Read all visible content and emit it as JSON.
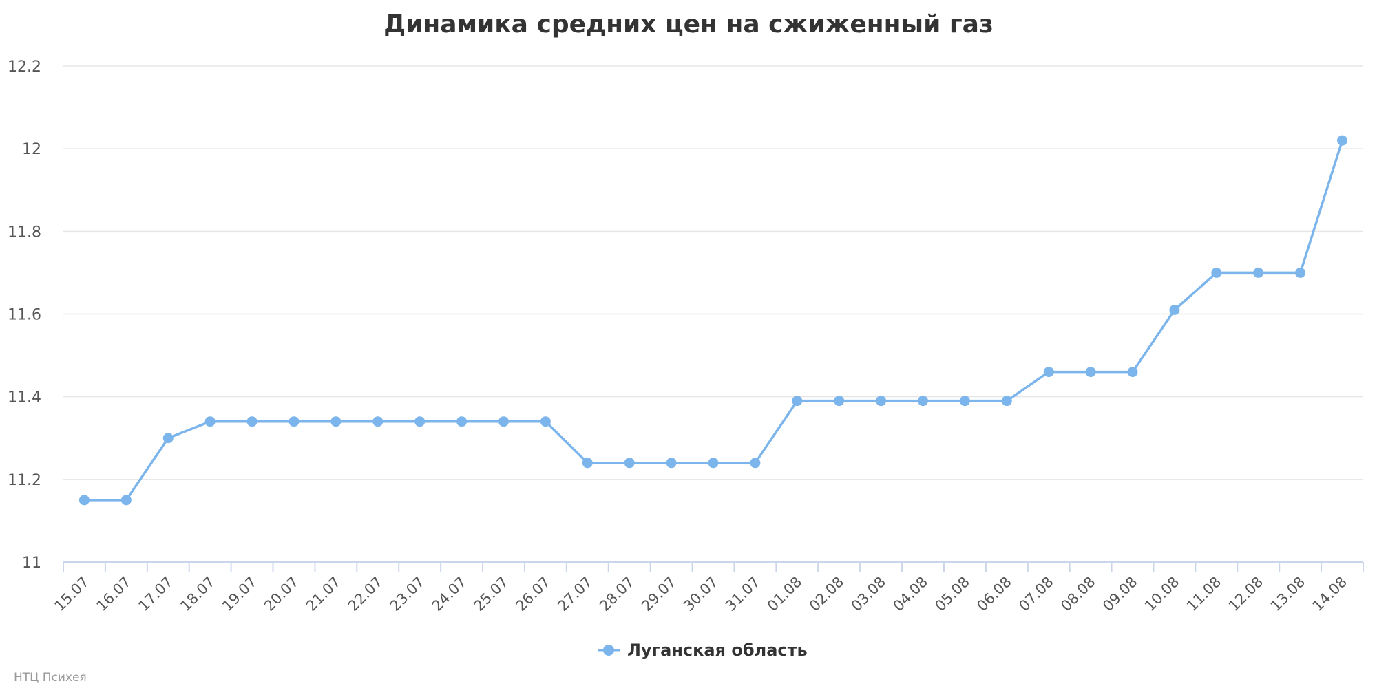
{
  "chart_data": {
    "type": "line",
    "title": "Динамика средних цен на сжиженный газ",
    "xlabel": "",
    "ylabel": "",
    "categories": [
      "15.07",
      "16.07",
      "17.07",
      "18.07",
      "19.07",
      "20.07",
      "21.07",
      "22.07",
      "23.07",
      "24.07",
      "25.07",
      "26.07",
      "27.07",
      "28.07",
      "29.07",
      "30.07",
      "31.07",
      "01.08",
      "02.08",
      "03.08",
      "04.08",
      "05.08",
      "06.08",
      "07.08",
      "08.08",
      "09.08",
      "10.08",
      "11.08",
      "12.08",
      "13.08",
      "14.08"
    ],
    "series": [
      {
        "name": "Луганская область",
        "color": "#7cb5ec",
        "values": [
          11.15,
          11.15,
          11.3,
          11.34,
          11.34,
          11.34,
          11.34,
          11.34,
          11.34,
          11.34,
          11.34,
          11.34,
          11.24,
          11.24,
          11.24,
          11.24,
          11.24,
          11.39,
          11.39,
          11.39,
          11.39,
          11.39,
          11.39,
          11.46,
          11.46,
          11.46,
          11.61,
          11.7,
          11.7,
          11.7,
          12.02
        ]
      }
    ],
    "ylim": [
      11,
      12.2
    ],
    "yticks": [
      "11",
      "11.2",
      "11.4",
      "11.6",
      "11.8",
      "12",
      "12.2"
    ],
    "grid": true,
    "legend_position": "bottom-center"
  },
  "credit": "НТЦ Психея",
  "colors": {
    "grid": "#e6e6e6",
    "axis": "#ccd6eb",
    "text": "#333333"
  }
}
